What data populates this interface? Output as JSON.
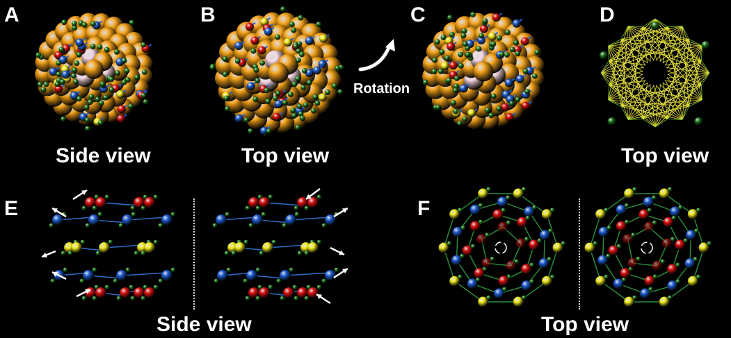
{
  "panels": {
    "A": {
      "letter": "A",
      "caption": "Side view"
    },
    "B": {
      "letter": "B",
      "caption": "Top view"
    },
    "C": {
      "letter": "C",
      "rotation_label": "Rotation"
    },
    "D": {
      "letter": "D",
      "caption": "Top view"
    },
    "E": {
      "letter": "E",
      "caption": "Side view"
    },
    "F": {
      "letter": "F",
      "caption": "Top view"
    }
  },
  "colors": {
    "background": "#000000",
    "gold_atom": "#f2a119",
    "pink_atom": "#f3d6e2",
    "ligand_green": "#1e7a1e",
    "ligand_blue": "#1f5fd6",
    "ligand_red": "#e01010",
    "ligand_yellow": "#f5ee20",
    "framework_yellow": "#e8e43c"
  },
  "icons": [
    "rotation-arrow-icon",
    "white-arrow-icon",
    "rotation-circle-icon"
  ]
}
